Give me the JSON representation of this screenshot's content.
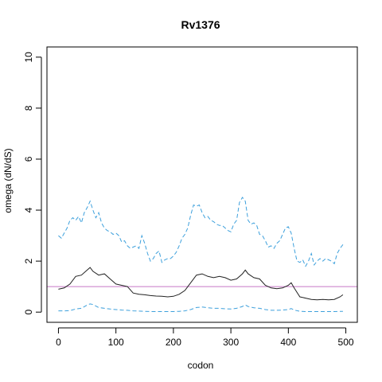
{
  "chart_data": {
    "type": "line",
    "title": "Rv1376",
    "xlabel": "codon",
    "ylabel": "omega (dN/dS)",
    "xlim": [
      -20,
      520
    ],
    "ylim": [
      -0.4,
      10.4
    ],
    "xticks": [
      0,
      100,
      200,
      300,
      400,
      500
    ],
    "yticks": [
      0,
      2,
      4,
      6,
      8,
      10
    ],
    "grid": false,
    "legend": "none",
    "reference_line": {
      "y": 1,
      "color": "#c678c6"
    },
    "series": [
      {
        "style": "solid",
        "color": "#222222",
        "x": [
          0,
          10,
          20,
          30,
          40,
          50,
          55,
          60,
          70,
          80,
          90,
          100,
          110,
          120,
          130,
          140,
          150,
          160,
          170,
          180,
          190,
          200,
          210,
          220,
          230,
          240,
          250,
          260,
          270,
          280,
          290,
          300,
          310,
          320,
          325,
          330,
          340,
          350,
          360,
          370,
          380,
          390,
          400,
          405,
          410,
          420,
          430,
          440,
          450,
          460,
          470,
          480,
          490,
          495
        ],
        "y": [
          0.9,
          0.95,
          1.1,
          1.4,
          1.45,
          1.65,
          1.75,
          1.6,
          1.45,
          1.5,
          1.3,
          1.1,
          1.05,
          1.0,
          0.75,
          0.7,
          0.68,
          0.65,
          0.63,
          0.62,
          0.6,
          0.62,
          0.7,
          0.85,
          1.15,
          1.45,
          1.5,
          1.4,
          1.35,
          1.4,
          1.35,
          1.25,
          1.3,
          1.5,
          1.65,
          1.5,
          1.35,
          1.3,
          1.05,
          0.95,
          0.92,
          0.95,
          1.05,
          1.15,
          0.95,
          0.6,
          0.55,
          0.5,
          0.48,
          0.5,
          0.48,
          0.5,
          0.6,
          0.68
        ]
      },
      {
        "style": "dashed",
        "color": "#3da0dc",
        "x": [
          0,
          5,
          10,
          15,
          20,
          25,
          30,
          35,
          40,
          45,
          50,
          55,
          60,
          65,
          70,
          75,
          80,
          85,
          90,
          95,
          100,
          105,
          110,
          115,
          120,
          125,
          130,
          135,
          140,
          145,
          150,
          155,
          160,
          165,
          170,
          175,
          180,
          185,
          190,
          195,
          200,
          205,
          210,
          215,
          220,
          225,
          230,
          235,
          240,
          245,
          250,
          255,
          260,
          265,
          270,
          275,
          280,
          285,
          290,
          295,
          300,
          305,
          310,
          315,
          320,
          325,
          330,
          335,
          340,
          345,
          350,
          355,
          360,
          365,
          370,
          375,
          380,
          385,
          390,
          395,
          400,
          405,
          410,
          415,
          420,
          425,
          430,
          435,
          440,
          445,
          450,
          455,
          460,
          465,
          470,
          475,
          480,
          485,
          490,
          495
        ],
        "y": [
          3.0,
          2.9,
          3.1,
          3.3,
          3.6,
          3.7,
          3.6,
          3.75,
          3.5,
          3.9,
          4.1,
          4.35,
          4.0,
          3.7,
          3.9,
          3.5,
          3.3,
          3.2,
          3.15,
          3.05,
          3.1,
          3.0,
          2.75,
          2.8,
          2.6,
          2.5,
          2.55,
          2.6,
          2.5,
          3.0,
          2.7,
          2.3,
          2.0,
          2.1,
          2.3,
          2.4,
          1.95,
          2.05,
          2.1,
          2.1,
          2.2,
          2.35,
          2.6,
          2.9,
          3.05,
          3.3,
          3.8,
          4.2,
          4.15,
          4.2,
          3.9,
          3.7,
          3.75,
          3.6,
          3.55,
          3.45,
          3.4,
          3.4,
          3.3,
          3.2,
          3.15,
          3.45,
          3.6,
          4.3,
          4.5,
          4.35,
          3.6,
          3.45,
          3.5,
          3.4,
          3.05,
          3.0,
          2.8,
          2.55,
          2.6,
          2.5,
          2.7,
          2.8,
          3.05,
          3.3,
          3.35,
          3.1,
          2.5,
          2.0,
          1.95,
          2.05,
          1.8,
          2.0,
          2.3,
          1.85,
          2.0,
          2.1,
          2.0,
          2.1,
          2.05,
          2.0,
          1.9,
          2.3,
          2.5,
          2.65
        ]
      },
      {
        "style": "dashed",
        "color": "#3da0dc",
        "x": [
          0,
          10,
          20,
          30,
          40,
          50,
          55,
          60,
          70,
          80,
          90,
          100,
          110,
          120,
          130,
          140,
          150,
          160,
          170,
          180,
          190,
          200,
          210,
          220,
          230,
          240,
          250,
          260,
          270,
          280,
          290,
          300,
          310,
          320,
          325,
          330,
          340,
          350,
          360,
          370,
          380,
          390,
          400,
          405,
          410,
          420,
          430,
          440,
          450,
          460,
          470,
          480,
          490,
          495
        ],
        "y": [
          0.05,
          0.05,
          0.06,
          0.12,
          0.15,
          0.28,
          0.32,
          0.3,
          0.18,
          0.15,
          0.12,
          0.1,
          0.08,
          0.07,
          0.05,
          0.04,
          0.03,
          0.02,
          0.02,
          0.02,
          0.02,
          0.02,
          0.03,
          0.05,
          0.1,
          0.18,
          0.2,
          0.17,
          0.15,
          0.15,
          0.13,
          0.12,
          0.15,
          0.22,
          0.28,
          0.22,
          0.17,
          0.15,
          0.1,
          0.07,
          0.07,
          0.08,
          0.1,
          0.14,
          0.08,
          0.03,
          0.02,
          0.02,
          0.02,
          0.02,
          0.02,
          0.02,
          0.03,
          0.03
        ]
      }
    ]
  }
}
